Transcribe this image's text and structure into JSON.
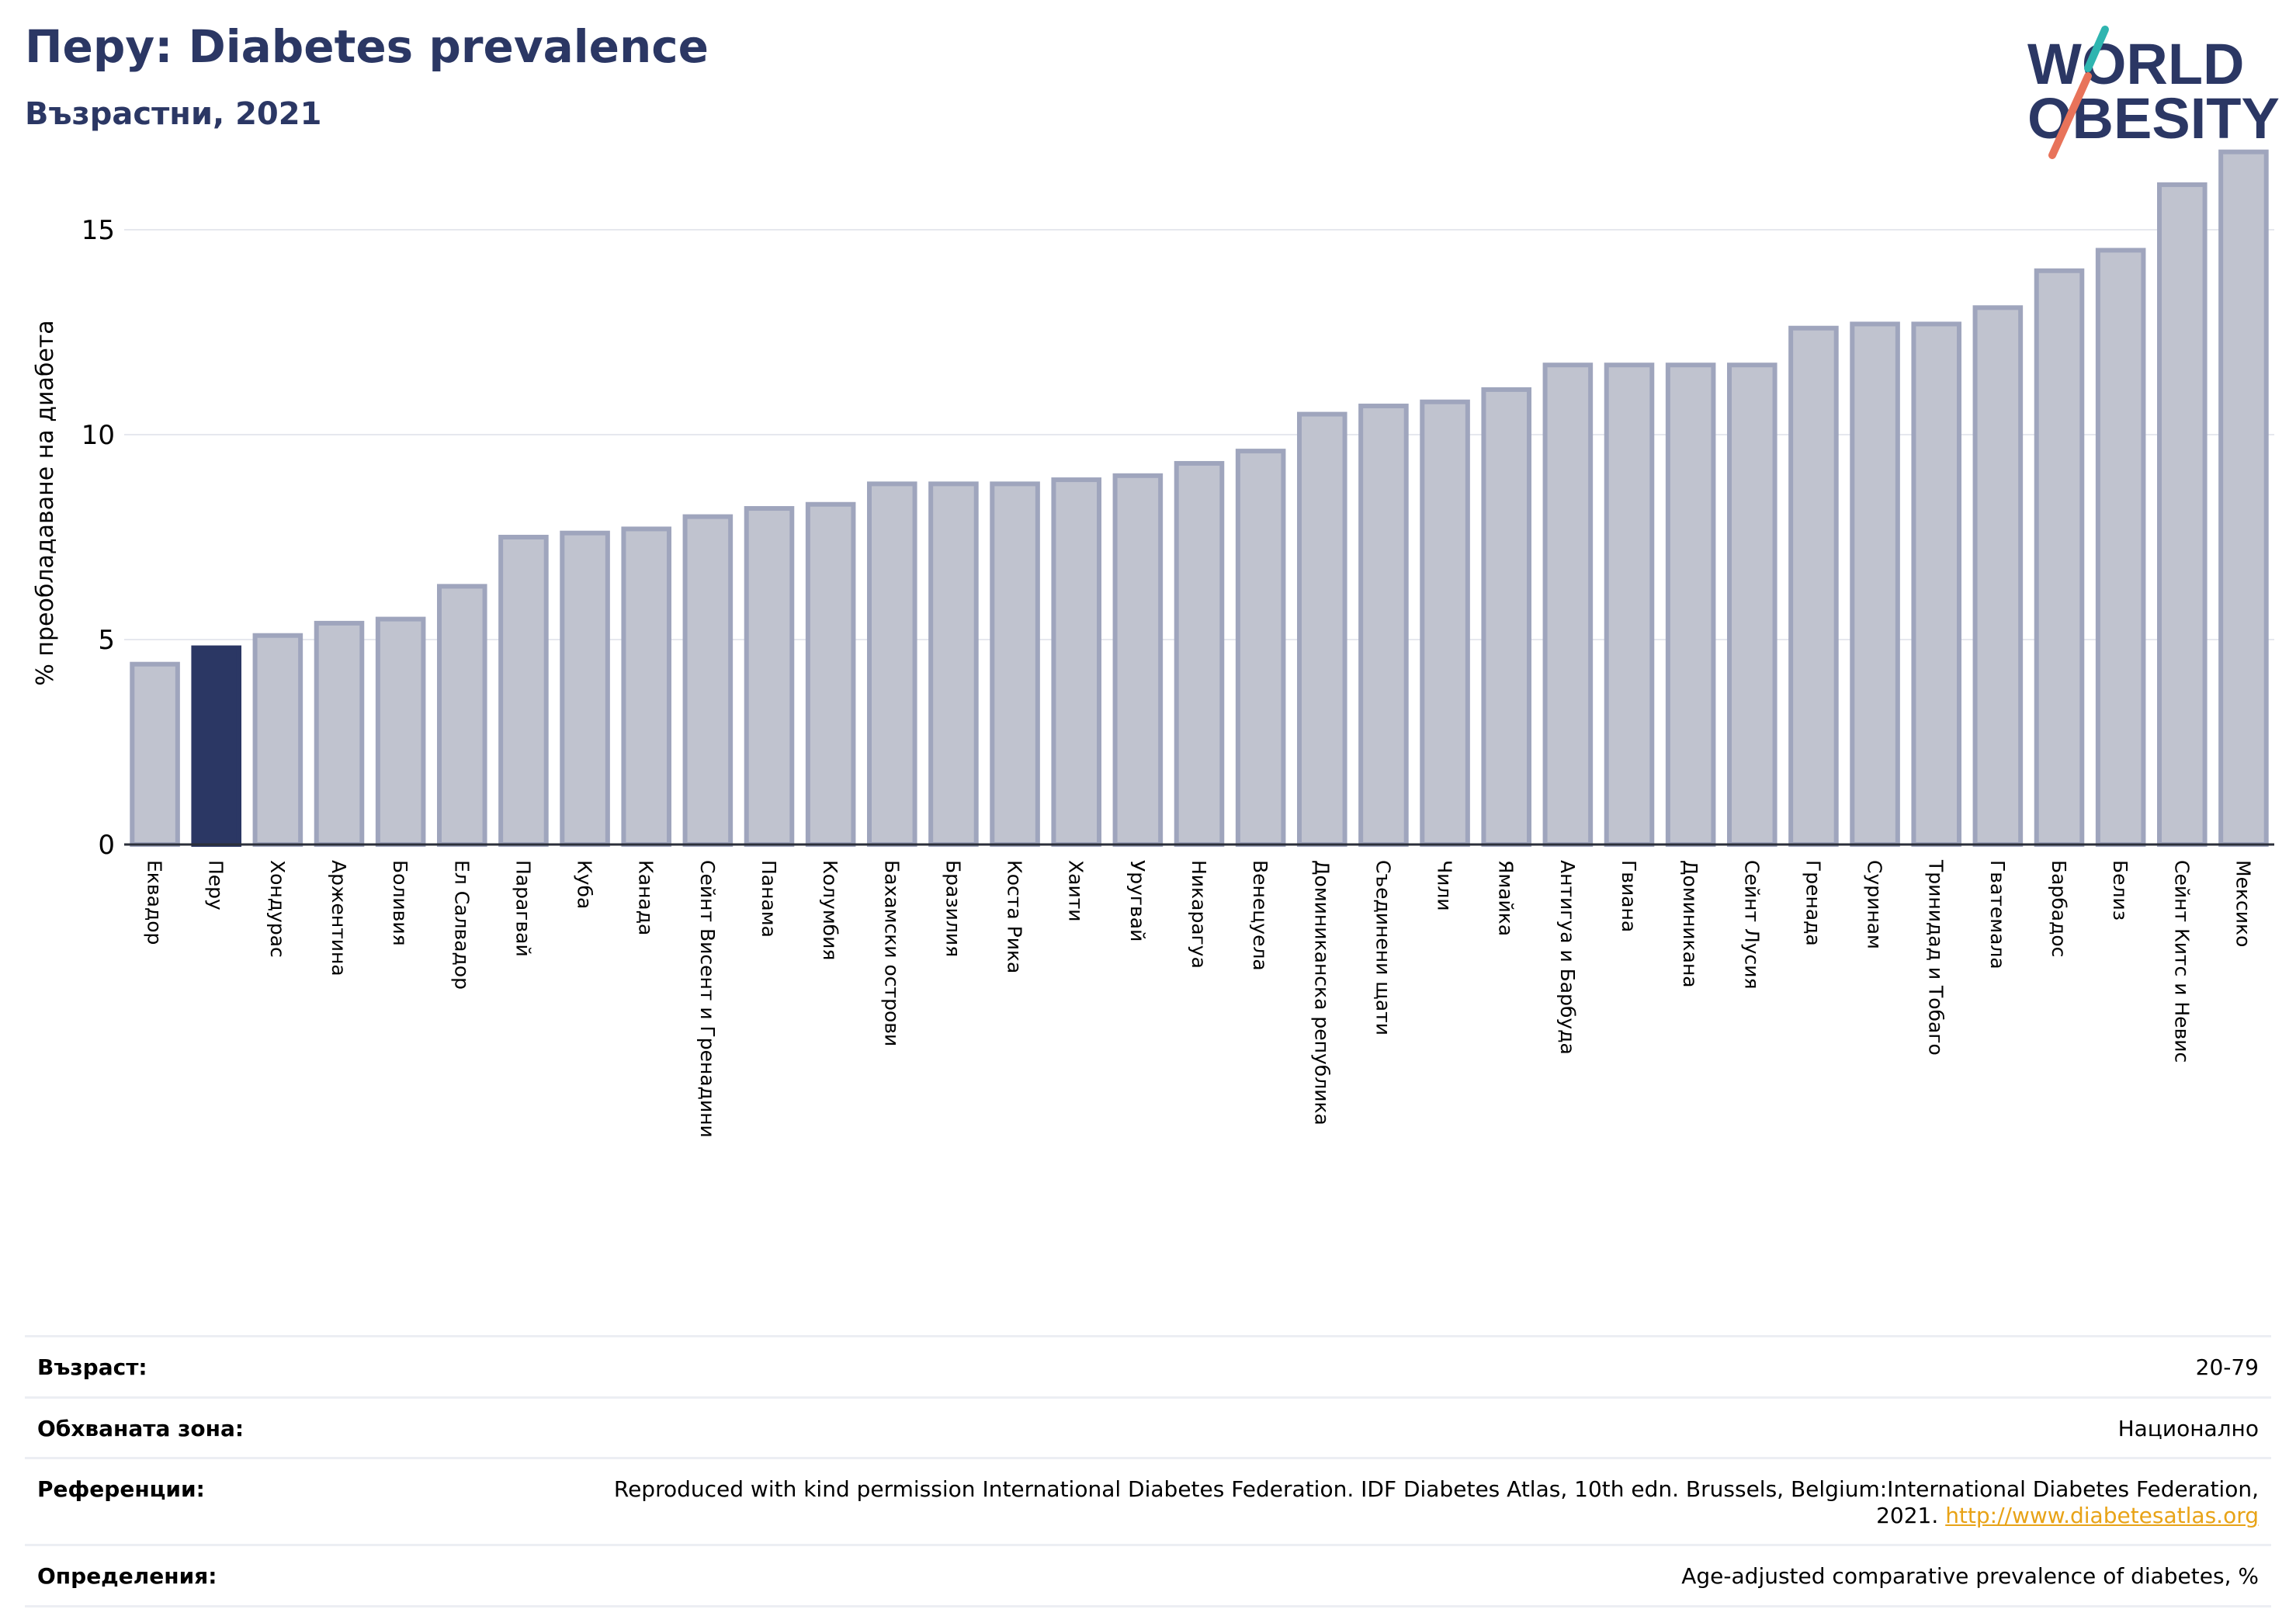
{
  "header": {
    "title": "Перу: Diabetes prevalence",
    "subtitle": "Възрастни, 2021"
  },
  "logo": {
    "line1": "WORLD",
    "line2": "OBESITY",
    "text_color": "#2b3764",
    "slash_color_top": "#2fb5b0",
    "slash_color_bottom": "#e8735a"
  },
  "chart_data": {
    "type": "bar",
    "ylabel": "% преобладаване на диабета",
    "ylim": [
      0,
      17.5
    ],
    "yticks": [
      0,
      5,
      10,
      15
    ],
    "grid": true,
    "highlight": "Перу",
    "colors": {
      "bar": "#c0c3cf",
      "bar_edge": "#9fa5bd",
      "highlight": "#2b3764",
      "grid": "#e6e8ee",
      "axis": "#2b2f3a"
    },
    "categories": [
      "Еквадор",
      "Перу",
      "Хондурас",
      "Аржентина",
      "Боливия",
      "Ел Салвадор",
      "Парагвай",
      "Куба",
      "Канада",
      "Сейнт Висент и Гренадини",
      "Панама",
      "Колумбия",
      "Бахамски острови",
      "Бразилия",
      "Коста Рика",
      "Хаити",
      "Уругвай",
      "Никарагуа",
      "Венецуела",
      "Доминиканска република",
      "Съединени щати",
      "Чили",
      "Ямайка",
      "Антигуа и Барбуда",
      "Гвиана",
      "Доминикана",
      "Сейнт Лусия",
      "Гренада",
      "Суринам",
      "Тринидад и Тобаго",
      "Гватемала",
      "Барбадос",
      "Белиз",
      "Сейнт Китс и Невис",
      "Мексико"
    ],
    "values": [
      4.4,
      4.8,
      5.1,
      5.4,
      5.5,
      6.3,
      7.5,
      7.6,
      7.7,
      8.0,
      8.2,
      8.3,
      8.8,
      8.8,
      8.8,
      8.9,
      9.0,
      9.3,
      9.6,
      10.5,
      10.7,
      10.8,
      11.1,
      11.7,
      11.7,
      11.7,
      11.7,
      12.6,
      12.7,
      12.7,
      13.1,
      14.0,
      14.5,
      16.1,
      16.9
    ]
  },
  "meta": [
    {
      "label": "Възраст:",
      "value": "20-79"
    },
    {
      "label": "Обхваната зона:",
      "value": "Национално"
    },
    {
      "label": "Референции:",
      "value": "Reproduced with kind permission International Diabetes Federation.  IDF Diabetes Atlas, 10th edn. Brussels, Belgium:International Diabetes Federation, 2021.",
      "link": "http://www.diabetesatlas.org"
    },
    {
      "label": "Определения:",
      "value": "Age-adjusted comparative prevalence of diabetes, %"
    }
  ]
}
